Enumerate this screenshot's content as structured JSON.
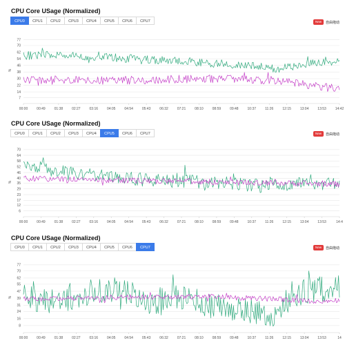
{
  "panels": [
    {
      "title": "CPU Core USage (Normalized)",
      "tabs": [
        "CPU0",
        "CPU1",
        "CPU2",
        "CPU3",
        "CPU4",
        "CPU5",
        "CPU6",
        "CPU7"
      ],
      "active_tab": 0,
      "badge": "New",
      "autoscroll_label": "自由拖动",
      "y_unit": "%",
      "y_ticks": [
        7,
        14,
        22,
        30,
        38,
        46,
        54,
        62,
        70,
        77
      ],
      "x_ticks": [
        "00:00",
        "00:49",
        "01:38",
        "02:27",
        "03:16",
        "04:05",
        "04:54",
        "05:43",
        "06:32",
        "07:21",
        "08:10",
        "08:59",
        "09:48",
        "10:37",
        "11:26",
        "12:15",
        "13:04",
        "13:53",
        "14:42"
      ]
    },
    {
      "title": "CPU Core USage (Normalized)",
      "tabs": [
        "CPU0",
        "CPU1",
        "CPU2",
        "CPU3",
        "CPU4",
        "CPU5",
        "CPU6",
        "CPU7"
      ],
      "active_tab": 5,
      "badge": "New",
      "autoscroll_label": "自由拖动",
      "y_unit": "%",
      "y_ticks": [
        6,
        12,
        17,
        23,
        29,
        35,
        40,
        46,
        52,
        58,
        64,
        70
      ],
      "x_ticks": [
        "00:00",
        "00:49",
        "01:38",
        "02:27",
        "03:16",
        "04:05",
        "04:54",
        "05:43",
        "06:32",
        "07:21",
        "08:10",
        "08:59",
        "09:48",
        "10:37",
        "11:26",
        "12:15",
        "13:04",
        "13:53",
        "14:4"
      ]
    },
    {
      "title": "CPU Core USage (Normalized)",
      "tabs": [
        "CPU0",
        "CPU1",
        "CPU2",
        "CPU3",
        "CPU4",
        "CPU5",
        "CPU6",
        "CPU7"
      ],
      "active_tab": 7,
      "badge": "New",
      "autoscroll_label": "自由拖动",
      "y_unit": "%",
      "y_ticks": [
        8,
        16,
        24,
        31,
        39,
        47,
        55,
        62,
        70,
        77
      ],
      "x_ticks": [
        "00:00",
        "00:49",
        "01:38",
        "02:27",
        "03:16",
        "04:05",
        "04:54",
        "05:43",
        "06:32",
        "07:21",
        "08:10",
        "08:59",
        "09:48",
        "10:37",
        "11:26",
        "12:15",
        "13:04",
        "13:53",
        "14"
      ]
    }
  ],
  "colors": {
    "series_a": "#2fa97c",
    "series_b": "#c53fc8",
    "grid": "#e8e8e8",
    "active_tab": "#3b7be9",
    "badge": "#e23b3b"
  },
  "chart_data": [
    {
      "type": "line",
      "ylim": [
        0,
        80
      ],
      "series": [
        {
          "color": "#2fa97c",
          "trend": [
            [
              0,
              58
            ],
            [
              0.15,
              58
            ],
            [
              0.35,
              54
            ],
            [
              0.55,
              50
            ],
            [
              0.7,
              46
            ],
            [
              0.8,
              42
            ],
            [
              0.9,
              48
            ],
            [
              1,
              52
            ]
          ],
          "noise": 5
        },
        {
          "color": "#c53fc8",
          "trend": [
            [
              0,
              28
            ],
            [
              0.3,
              28
            ],
            [
              0.6,
              30
            ],
            [
              0.8,
              28
            ],
            [
              0.9,
              22
            ],
            [
              1,
              18
            ]
          ],
          "noise": 5
        }
      ]
    },
    {
      "type": "line",
      "ylim": [
        0,
        72
      ],
      "series": [
        {
          "color": "#2fa97c",
          "trend": [
            [
              0,
              54
            ],
            [
              0.15,
              46
            ],
            [
              0.4,
              38
            ],
            [
              0.6,
              36
            ],
            [
              0.75,
              32
            ],
            [
              0.85,
              34
            ],
            [
              1,
              34
            ]
          ],
          "noise": 7
        },
        {
          "color": "#c53fc8",
          "trend": [
            [
              0,
              40
            ],
            [
              0.3,
              38
            ],
            [
              0.6,
              36
            ],
            [
              0.85,
              35
            ],
            [
              1,
              34
            ]
          ],
          "noise": 3
        }
      ]
    },
    {
      "type": "line",
      "ylim": [
        0,
        80
      ],
      "series": [
        {
          "color": "#2fa97c",
          "trend": [
            [
              0,
              40
            ],
            [
              0.1,
              34
            ],
            [
              0.2,
              45
            ],
            [
              0.3,
              48
            ],
            [
              0.4,
              35
            ],
            [
              0.5,
              40
            ],
            [
              0.6,
              30
            ],
            [
              0.7,
              25
            ],
            [
              0.8,
              18
            ],
            [
              0.85,
              44
            ],
            [
              1,
              52
            ]
          ],
          "noise": 15
        },
        {
          "color": "#c53fc8",
          "trend": [
            [
              0,
              38
            ],
            [
              0.3,
              40
            ],
            [
              0.6,
              41
            ],
            [
              0.8,
              38
            ],
            [
              0.9,
              36
            ],
            [
              1,
              36
            ]
          ],
          "noise": 3
        }
      ]
    }
  ]
}
